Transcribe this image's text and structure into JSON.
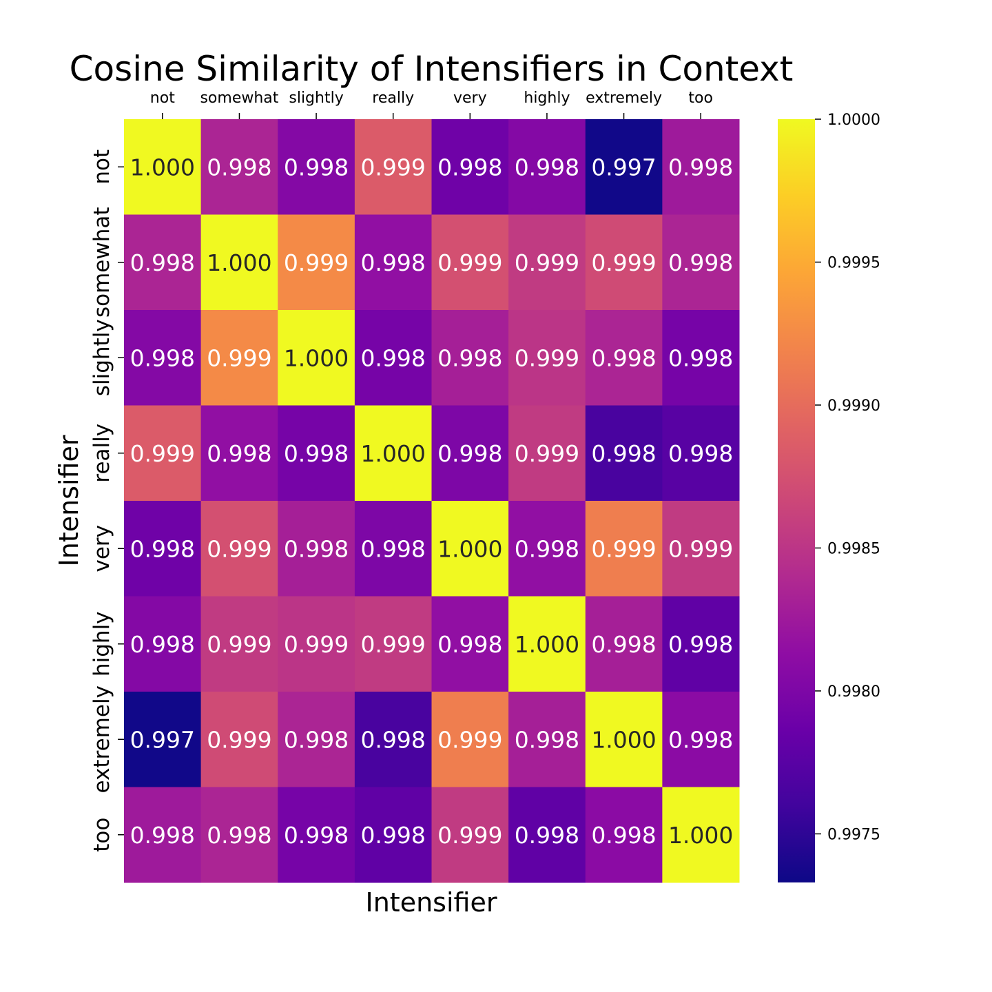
{
  "chart_data": {
    "type": "heatmap",
    "title": "Cosine Similarity of Intensifiers in Context",
    "xlabel": "Intensifier",
    "ylabel": "Intensifier",
    "x_categories": [
      "not",
      "somewhat",
      "slightly",
      "really",
      "very",
      "highly",
      "extremely",
      "too"
    ],
    "y_categories": [
      "not",
      "somewhat",
      "slightly",
      "really",
      "very",
      "highly",
      "extremely",
      "too"
    ],
    "values": [
      [
        1.0,
        0.99835,
        0.99805,
        0.99885,
        0.9979,
        0.99805,
        0.99735,
        0.99825
      ],
      [
        0.99835,
        1.0,
        0.99925,
        0.99815,
        0.99875,
        0.99855,
        0.9987,
        0.99835
      ],
      [
        0.99805,
        0.99925,
        1.0,
        0.99795,
        0.9983,
        0.9985,
        0.99835,
        0.99795
      ],
      [
        0.99885,
        0.99815,
        0.99795,
        1.0,
        0.998,
        0.99855,
        0.99765,
        0.99775
      ],
      [
        0.9979,
        0.99875,
        0.9983,
        0.998,
        1.0,
        0.99815,
        0.99915,
        0.99855
      ],
      [
        0.99805,
        0.99855,
        0.9985,
        0.99855,
        0.99815,
        1.0,
        0.9983,
        0.9978
      ],
      [
        0.99735,
        0.9987,
        0.99835,
        0.99765,
        0.99915,
        0.9983,
        1.0,
        0.9981
      ],
      [
        0.99825,
        0.99835,
        0.99795,
        0.9978,
        0.99855,
        0.9978,
        0.9981,
        1.0
      ]
    ],
    "annotations": [
      [
        "1.000",
        "0.998",
        "0.998",
        "0.999",
        "0.998",
        "0.998",
        "0.997",
        "0.998"
      ],
      [
        "0.998",
        "1.000",
        "0.999",
        "0.998",
        "0.999",
        "0.999",
        "0.999",
        "0.998"
      ],
      [
        "0.998",
        "0.999",
        "1.000",
        "0.998",
        "0.998",
        "0.999",
        "0.998",
        "0.998"
      ],
      [
        "0.999",
        "0.998",
        "0.998",
        "1.000",
        "0.998",
        "0.999",
        "0.998",
        "0.998"
      ],
      [
        "0.998",
        "0.999",
        "0.998",
        "0.998",
        "1.000",
        "0.998",
        "0.999",
        "0.999"
      ],
      [
        "0.998",
        "0.999",
        "0.999",
        "0.999",
        "0.998",
        "1.000",
        "0.998",
        "0.998"
      ],
      [
        "0.997",
        "0.999",
        "0.998",
        "0.998",
        "0.999",
        "0.998",
        "1.000",
        "0.998"
      ],
      [
        "0.998",
        "0.998",
        "0.998",
        "0.998",
        "0.999",
        "0.998",
        "0.998",
        "1.000"
      ]
    ],
    "colormap": "plasma",
    "color_range": [
      0.99733,
      1.0
    ],
    "colorbar_ticks": [
      "0.9975",
      "0.9980",
      "0.9985",
      "0.9990",
      "0.9995",
      "1.0000"
    ],
    "colorbar_tick_values": [
      0.9975,
      0.998,
      0.9985,
      0.999,
      0.9995,
      1.0
    ],
    "x_tick_position": "top",
    "grid": false
  }
}
